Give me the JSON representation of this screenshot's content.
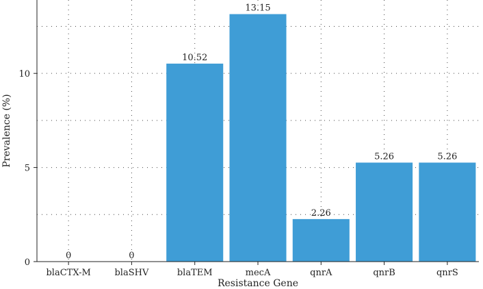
{
  "chart_data": {
    "type": "bar",
    "title": "",
    "xlabel": "Resistance Gene",
    "ylabel": "Prevalence (%)",
    "categories": [
      "blaCTX-M",
      "blaSHV",
      "blaTEM",
      "mecA",
      "qnrA",
      "qnrB",
      "qnrS"
    ],
    "values": [
      0,
      0,
      10.52,
      13.15,
      2.26,
      5.26,
      5.26
    ],
    "data_labels": [
      "0",
      "0",
      "10.52",
      "13.15",
      "2.26",
      "5.26",
      "5.26"
    ],
    "y_ticks": [
      0,
      5,
      10
    ],
    "y_tick_labels": [
      "0",
      "5",
      "10"
    ],
    "ylim": [
      0,
      13.9
    ],
    "grid": true,
    "bar_color": "#3f9dd6"
  }
}
